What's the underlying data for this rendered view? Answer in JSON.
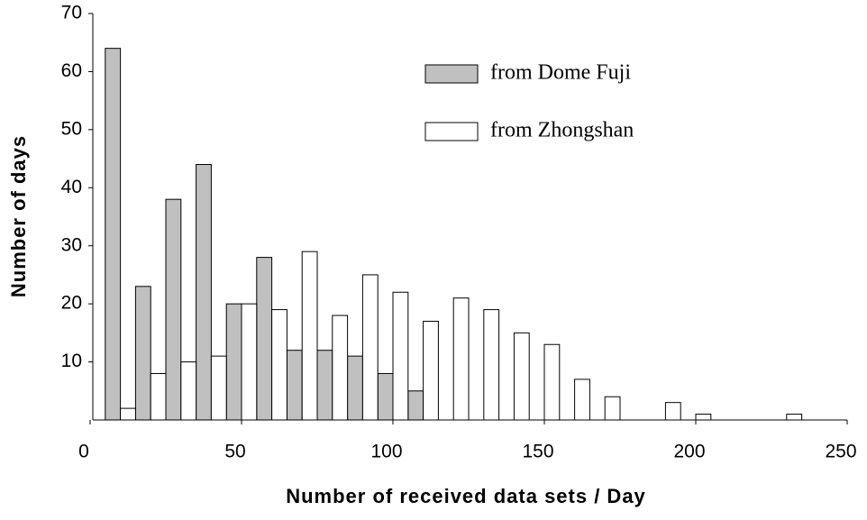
{
  "chart_data": {
    "type": "bar",
    "x_label": "Number of received data sets / Day",
    "y_label": "Number of days",
    "x": [
      10,
      20,
      30,
      40,
      50,
      60,
      70,
      80,
      90,
      100,
      110,
      120,
      130,
      140,
      150,
      160,
      170,
      180,
      190,
      200,
      210,
      220,
      230,
      240
    ],
    "series": [
      {
        "name": "from Dome Fuji",
        "color": "#c0c0c0",
        "values": [
          64,
          23,
          38,
          44,
          20,
          28,
          12,
          12,
          11,
          8,
          5,
          0,
          0,
          0,
          0,
          0,
          0,
          0,
          0,
          0,
          0,
          0,
          0,
          0
        ]
      },
      {
        "name": "from Zhongshan",
        "color": "#ffffff",
        "values": [
          2,
          8,
          10,
          11,
          20,
          19,
          29,
          18,
          25,
          22,
          17,
          21,
          19,
          15,
          13,
          7,
          4,
          0,
          3,
          1,
          0,
          0,
          1,
          0
        ]
      }
    ],
    "xlim": [
      0,
      250
    ],
    "xticks": [
      0,
      50,
      100,
      150,
      200,
      250
    ],
    "ylim": [
      0,
      70
    ],
    "yticks": [
      10,
      20,
      30,
      40,
      50,
      60,
      70
    ],
    "legend": "top-right",
    "grid": false
  }
}
